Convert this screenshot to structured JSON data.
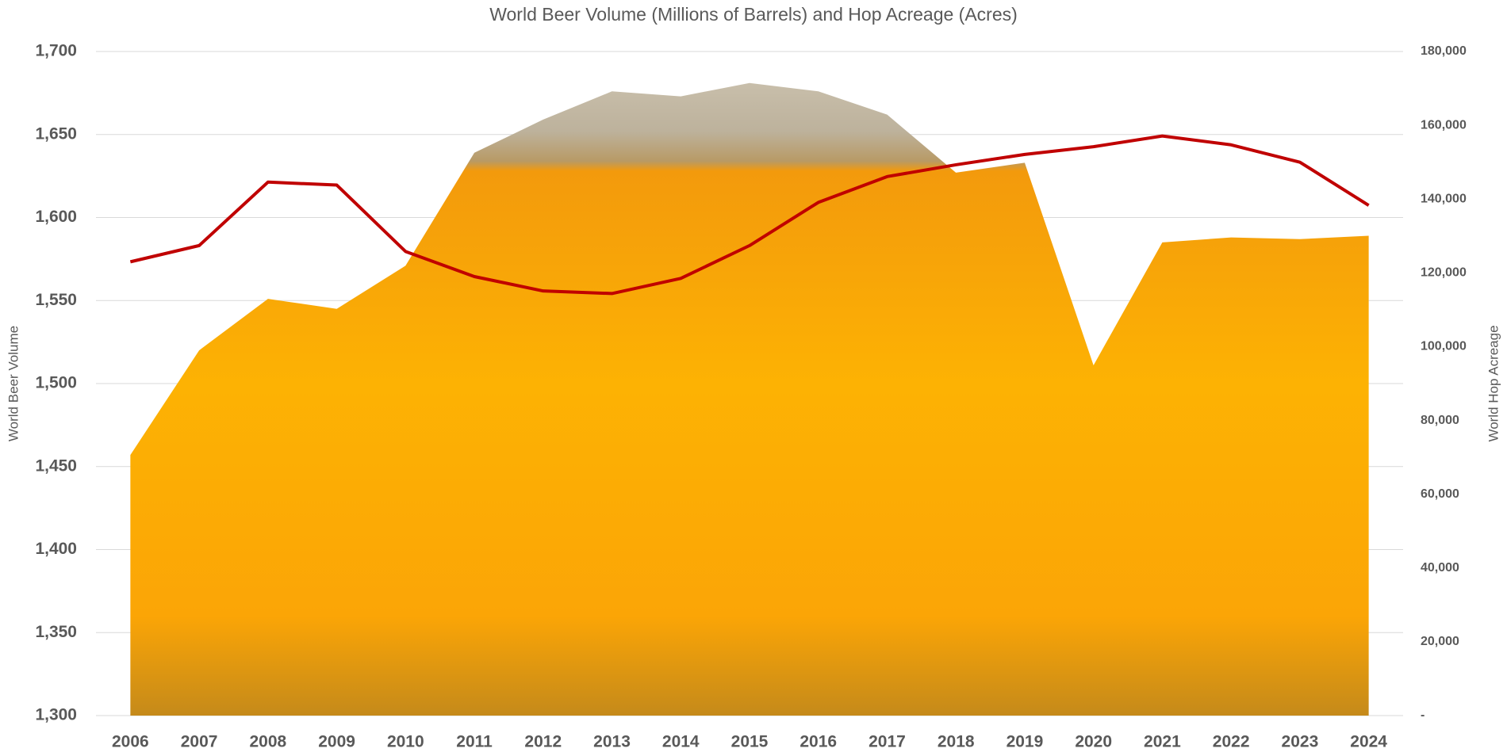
{
  "chart_data": {
    "type": "combo",
    "title": "World Beer Volume (Millions of Barrels) and Hop Acreage (Acres)",
    "y_label": "World Beer Volume",
    "y2_label": "World Hop Acreage",
    "categories": [
      "2006",
      "2007",
      "2008",
      "2009",
      "2010",
      "2011",
      "2012",
      "2013",
      "2014",
      "2015",
      "2016",
      "2017",
      "2018",
      "2019",
      "2020",
      "2021",
      "2022",
      "2023",
      "2024"
    ],
    "series": [
      {
        "type": "area",
        "color": "#fbb000",
        "values": [
          1457,
          1520,
          1551,
          1545,
          1571,
          1639,
          1659,
          1676,
          1673,
          1681,
          1676,
          1662,
          1627,
          1633,
          1511,
          1585,
          1588,
          1587,
          1589
        ]
      },
      {
        "type": "line",
        "axis": "y2",
        "color": "#c00000",
        "values": [
          123000,
          127400,
          144600,
          143800,
          125800,
          119000,
          115100,
          114400,
          118500,
          127400,
          139100,
          146100,
          149300,
          152100,
          154200,
          157100,
          154700,
          150000,
          138300
        ]
      }
    ],
    "ylim": [
      1300,
      1700
    ],
    "yticks": [
      {
        "value": 1300,
        "label": "1,300"
      },
      {
        "value": 1350,
        "label": "1,350"
      },
      {
        "value": 1400,
        "label": "1,400"
      },
      {
        "value": 1450,
        "label": "1,450"
      },
      {
        "value": 1500,
        "label": "1,500"
      },
      {
        "value": 1550,
        "label": "1,550"
      },
      {
        "value": 1600,
        "label": "1,600"
      },
      {
        "value": 1650,
        "label": "1,650"
      },
      {
        "value": 1700,
        "label": "1,700"
      }
    ],
    "y2lim": [
      0,
      180000
    ],
    "y2ticks": [
      {
        "value": 0,
        "label": "-"
      },
      {
        "value": 20000,
        "label": "20,000"
      },
      {
        "value": 40000,
        "label": "40,000"
      },
      {
        "value": 60000,
        "label": "60,000"
      },
      {
        "value": 80000,
        "label": "80,000"
      },
      {
        "value": 100000,
        "label": "100,000"
      },
      {
        "value": 120000,
        "label": "120,000"
      },
      {
        "value": 140000,
        "label": "140,000"
      },
      {
        "value": 160000,
        "label": "160,000"
      },
      {
        "value": 180000,
        "label": "180,000"
      }
    ],
    "grid": true
  }
}
